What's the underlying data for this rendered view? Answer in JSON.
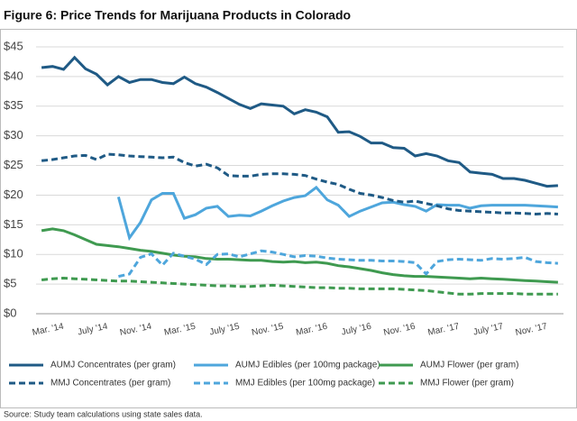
{
  "chart_data": {
    "type": "line",
    "title": "Figure 6: Price Trends for Marijuana Products in Colorado",
    "note": "Source: Study team calculations using state sales data.",
    "categories": [
      null,
      null,
      "Mar. '14",
      null,
      null,
      null,
      "July '14",
      null,
      null,
      null,
      "Nov. '14",
      null,
      null,
      null,
      "Mar. '15",
      null,
      null,
      null,
      "July '15",
      null,
      null,
      null,
      "Nov. '15",
      null,
      null,
      null,
      "Mar. '16",
      null,
      null,
      null,
      "July '16",
      null,
      null,
      null,
      "Nov. '16",
      null,
      null,
      null,
      "Mar. '17",
      null,
      null,
      null,
      "July '17",
      null,
      null,
      null,
      "Nov. '17",
      null
    ],
    "ylim": [
      0,
      45
    ],
    "yticks": [
      {
        "value": 0,
        "label": "$0"
      },
      {
        "value": 5,
        "label": "$5"
      },
      {
        "value": 10,
        "label": "$10"
      },
      {
        "value": 15,
        "label": "$15"
      },
      {
        "value": 20,
        "label": "$20"
      },
      {
        "value": 25,
        "label": "$25"
      },
      {
        "value": 30,
        "label": "$30"
      },
      {
        "value": 35,
        "label": "$35"
      },
      {
        "value": 40,
        "label": "$40"
      },
      {
        "value": 45,
        "label": "$45"
      }
    ],
    "grid": true,
    "series": [
      {
        "name": "AUMJ Concentrates (per gram)",
        "color": "#1f5a85",
        "dash": false,
        "values": [
          41.5,
          41.7,
          41.2,
          43.2,
          41.3,
          40.4,
          38.6,
          40.0,
          39.0,
          39.5,
          39.5,
          39.0,
          38.8,
          39.9,
          38.8,
          38.2,
          37.3,
          36.3,
          35.3,
          34.6,
          35.4,
          35.2,
          35.0,
          33.7,
          34.4,
          34.0,
          33.2,
          30.6,
          30.7,
          29.9,
          28.8,
          28.8,
          28.0,
          27.9,
          26.6,
          27.0,
          26.6,
          25.8,
          25.5,
          23.9,
          23.7,
          23.5,
          22.8,
          22.8,
          22.5,
          22.0,
          21.5,
          21.6
        ]
      },
      {
        "name": "AUMJ Edibles (per 100mg package)",
        "color": "#4ea6dc",
        "dash": false,
        "values": [
          null,
          null,
          null,
          null,
          null,
          null,
          null,
          19.7,
          12.8,
          15.4,
          19.2,
          20.3,
          20.3,
          16.1,
          16.7,
          17.8,
          18.1,
          16.4,
          16.6,
          16.5,
          17.3,
          18.2,
          19.0,
          19.6,
          19.9,
          21.3,
          19.2,
          18.3,
          16.4,
          17.3,
          18.0,
          18.7,
          18.8,
          18.4,
          18.1,
          17.3,
          18.4,
          18.3,
          18.3,
          17.8,
          18.2,
          18.3,
          18.3,
          18.3,
          18.3,
          18.2,
          18.1,
          18.0
        ]
      },
      {
        "name": "AUMJ Flower (per gram)",
        "color": "#3f9a50",
        "dash": false,
        "values": [
          14.0,
          14.3,
          14.0,
          13.3,
          12.5,
          11.7,
          11.5,
          11.3,
          11.0,
          10.7,
          10.5,
          10.2,
          9.9,
          9.7,
          9.6,
          9.3,
          9.2,
          9.2,
          9.1,
          9.0,
          9.0,
          8.8,
          8.7,
          8.8,
          8.6,
          8.7,
          8.5,
          8.1,
          7.9,
          7.6,
          7.3,
          6.9,
          6.6,
          6.4,
          6.3,
          6.3,
          6.2,
          6.1,
          6.0,
          5.9,
          6.0,
          5.9,
          5.8,
          5.7,
          5.6,
          5.5,
          5.4,
          5.3
        ]
      },
      {
        "name": "MMJ Concentrates (per gram)",
        "color": "#1f5a85",
        "dash": true,
        "values": [
          25.8,
          26.0,
          26.3,
          26.6,
          26.7,
          26.0,
          26.9,
          26.8,
          26.6,
          26.5,
          26.4,
          26.3,
          26.4,
          25.5,
          24.9,
          25.2,
          24.6,
          23.3,
          23.2,
          23.2,
          23.5,
          23.6,
          23.6,
          23.5,
          23.3,
          22.7,
          22.2,
          21.8,
          21.0,
          20.3,
          20.0,
          19.6,
          19.1,
          18.8,
          19.0,
          18.6,
          18.2,
          17.7,
          17.4,
          17.3,
          17.2,
          17.1,
          17.0,
          17.0,
          16.9,
          16.8,
          16.9,
          16.8
        ]
      },
      {
        "name": "MMJ Edibles (per 100mg package)",
        "color": "#4ea6dc",
        "dash": true,
        "values": [
          null,
          null,
          null,
          null,
          null,
          null,
          null,
          6.3,
          6.7,
          9.5,
          10.1,
          8.2,
          10.2,
          9.7,
          9.2,
          8.3,
          10.0,
          10.1,
          9.6,
          10.1,
          10.6,
          10.4,
          10.0,
          9.6,
          9.8,
          9.7,
          9.4,
          9.2,
          9.1,
          9.0,
          9.0,
          8.9,
          8.9,
          8.8,
          8.6,
          6.7,
          8.8,
          9.1,
          9.2,
          9.1,
          9.0,
          9.3,
          9.2,
          9.3,
          9.5,
          8.8,
          8.6,
          8.5
        ]
      },
      {
        "name": "MMJ Flower (per gram)",
        "color": "#3f9a50",
        "dash": true,
        "values": [
          5.7,
          5.9,
          6.0,
          5.9,
          5.8,
          5.7,
          5.6,
          5.5,
          5.5,
          5.4,
          5.3,
          5.2,
          5.1,
          5.0,
          4.9,
          4.8,
          4.7,
          4.7,
          4.6,
          4.6,
          4.7,
          4.8,
          4.7,
          4.6,
          4.5,
          4.4,
          4.4,
          4.3,
          4.3,
          4.2,
          4.2,
          4.2,
          4.2,
          4.1,
          4.0,
          3.9,
          3.7,
          3.5,
          3.3,
          3.3,
          3.4,
          3.4,
          3.4,
          3.4,
          3.3,
          3.3,
          3.3,
          3.3
        ]
      }
    ]
  }
}
